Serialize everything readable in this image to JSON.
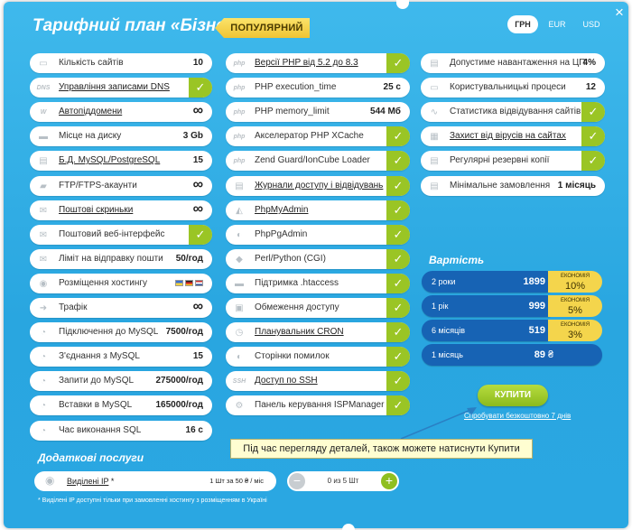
{
  "header": {
    "title": "Тарифний план «Бізнес»",
    "badge": "ПОПУЛЯРНИЙ",
    "close_glyph": "×",
    "currencies": [
      {
        "label": "ГРН",
        "active": true
      },
      {
        "label": "EUR",
        "active": false
      },
      {
        "label": "USD",
        "active": false
      }
    ]
  },
  "col1": [
    {
      "icon": "sites-icon",
      "label": "Кількість сайтів",
      "value": "10",
      "link": false
    },
    {
      "icon": "dns-icon",
      "tag": "DNS",
      "label": "Управління записами DNS",
      "value": "✓",
      "link": true,
      "check": true
    },
    {
      "icon": "domain-icon",
      "tag": "W",
      "label": "Автопіддомени",
      "value": "∞",
      "link": true,
      "inf": true
    },
    {
      "icon": "disk-icon",
      "label": "Місце на диску",
      "value": "3 Gb",
      "link": false
    },
    {
      "icon": "database-icon",
      "label": "Б.Д. MySQL/PostgreSQL",
      "value": "15",
      "link": true
    },
    {
      "icon": "folder-icon",
      "label": "FTP/FTPS-акаунти",
      "value": "∞",
      "link": false,
      "inf": true
    },
    {
      "icon": "mail-icon",
      "label": "Поштові скриньки",
      "value": "∞",
      "link": true,
      "inf": true
    },
    {
      "icon": "webmail-icon",
      "label": "Поштовий веб-інтерфейс",
      "value": "✓",
      "link": false,
      "check": true
    },
    {
      "icon": "mail-limit-icon",
      "label": "Ліміт на відправку пошти",
      "value": "50/год",
      "link": false
    },
    {
      "icon": "location-icon",
      "label": "Розміщення хостингу",
      "value": "",
      "link": false,
      "flags": true
    },
    {
      "icon": "traffic-icon",
      "label": "Трафік",
      "value": "∞",
      "link": false,
      "inf": true
    },
    {
      "icon": "mysql-connect-icon",
      "label": "Підключення до MySQL",
      "value": "7500/год",
      "link": false
    },
    {
      "icon": "mysql-icon",
      "label": "З'єднання з MySQL",
      "value": "15",
      "link": false
    },
    {
      "icon": "mysql-query-icon",
      "label": "Запити до MySQL",
      "value": "275000/год",
      "link": false
    },
    {
      "icon": "mysql-insert-icon",
      "label": "Вставки в MySQL",
      "value": "165000/год",
      "link": false
    },
    {
      "icon": "time-icon",
      "label": "Час виконання SQL",
      "value": "16 с",
      "link": false
    }
  ],
  "col2": [
    {
      "icon": "php-icon",
      "tag": "php",
      "label": "Версії PHP від 5.2 до 8.3",
      "value": "✓",
      "link": true,
      "check": true
    },
    {
      "icon": "php-icon",
      "tag": "php",
      "label": "PHP execution_time",
      "value": "25 с",
      "link": false
    },
    {
      "icon": "php-icon",
      "tag": "php",
      "label": "PHP memory_limit",
      "value": "544 Мб",
      "link": false
    },
    {
      "icon": "php-icon",
      "tag": "php",
      "label": "Акселератор PHP XCache",
      "value": "✓",
      "link": false,
      "check": true
    },
    {
      "icon": "php-icon",
      "tag": "php",
      "label": "Zend Guard/IonCube Loader",
      "value": "✓",
      "link": false,
      "check": true
    },
    {
      "icon": "log-icon",
      "label": "Журнали доступу і відвідувань",
      "value": "✓",
      "link": true,
      "check": true
    },
    {
      "icon": "phpmyadmin-icon",
      "label": "PhpMyAdmin",
      "value": "✓",
      "link": true,
      "check": true
    },
    {
      "icon": "phppgadmin-icon",
      "label": "PhpPgAdmin",
      "value": "✓",
      "link": false,
      "check": true
    },
    {
      "icon": "perl-icon",
      "label": "Perl/Python (CGI)",
      "value": "✓",
      "link": false,
      "check": true
    },
    {
      "icon": "htaccess-icon",
      "label": "Підтримка .htaccess",
      "value": "✓",
      "link": false,
      "check": true
    },
    {
      "icon": "lock-icon",
      "label": "Обмеження доступу",
      "value": "✓",
      "link": false,
      "check": true
    },
    {
      "icon": "cron-icon",
      "label": "Планувальник CRON",
      "value": "✓",
      "link": true,
      "check": true
    },
    {
      "icon": "error-page-icon",
      "label": "Сторінки помилок",
      "value": "✓",
      "link": false,
      "check": true
    },
    {
      "icon": "ssh-icon",
      "tag": "SSH",
      "label": "Доступ по SSH",
      "value": "✓",
      "link": true,
      "check": true
    },
    {
      "icon": "panel-icon",
      "label": "Панель керування ISPManager",
      "value": "✓",
      "link": false,
      "check": true
    }
  ],
  "col3": [
    {
      "icon": "cpu-icon",
      "label": "Допустиме навантаження на ЦП",
      "value": "4%",
      "link": false
    },
    {
      "icon": "process-icon",
      "label": "Користувальницькі процеси",
      "value": "12",
      "link": false
    },
    {
      "icon": "stats-icon",
      "label": "Статистика відвідування сайтів",
      "value": "✓",
      "link": false,
      "check": true
    },
    {
      "icon": "virus-icon",
      "label": "Захист від вірусів на сайтах",
      "value": "✓",
      "link": true,
      "check": true
    },
    {
      "icon": "backup-icon",
      "label": "Регулярні резервні копії",
      "value": "✓",
      "link": false,
      "check": true
    },
    {
      "icon": "min-order-icon",
      "label": "Мінімальне замовлення",
      "value": "1 місяць",
      "link": false
    }
  ],
  "pricing": {
    "title": "Вартість",
    "currency_sign": "₴",
    "economy_label": "ЕКОНОМІЯ",
    "rows": [
      {
        "period": "2 роки",
        "price": "1899",
        "saving": "10%"
      },
      {
        "period": "1 рік",
        "price": "999",
        "saving": "5%"
      },
      {
        "period": "6 місяців",
        "price": "519",
        "saving": "3%"
      },
      {
        "period": "1 місяць",
        "price": "89",
        "saving": ""
      }
    ],
    "buy_label": "КУПИТИ",
    "trial_label": "Спробувати безкоштовно 7 днів"
  },
  "tooltip": "Під час перегляду деталей, також можете натиснути Купити",
  "addons": {
    "title": "Додаткові послуги",
    "item_label": "Виділені IP",
    "item_star": " *",
    "item_price": "1 Шт за 50 ₴ / міс",
    "qty_text": "0 из 5 Шт",
    "footnote": "* Виділені IP доступні тільки при замовленні хостингу з розміщенням в Україні"
  }
}
